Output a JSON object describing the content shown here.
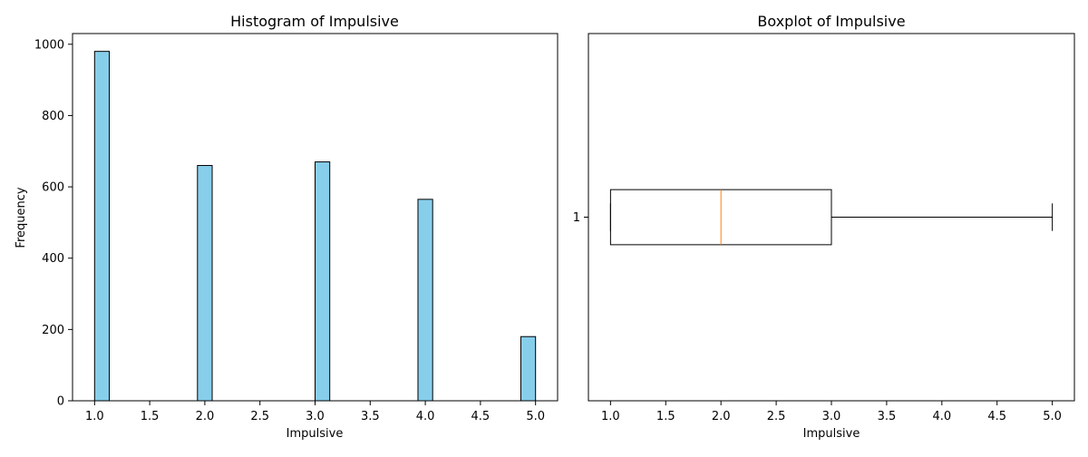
{
  "colors": {
    "bar_fill": "#87ceeb",
    "bar_edge": "#000000",
    "median_line": "#ff7f0e",
    "axes": "#000000"
  },
  "chart_data": [
    {
      "type": "bar",
      "title": "Histogram of Impulsive",
      "xlabel": "Impulsive",
      "ylabel": "Frequency",
      "xlim": [
        0.8,
        5.2
      ],
      "ylim": [
        0,
        1030
      ],
      "bin_width": 0.1333,
      "bins": [
        {
          "x_start": 1.0,
          "x_end": 1.1333,
          "count": 980
        },
        {
          "x_start": 1.9333,
          "x_end": 2.0667,
          "count": 660
        },
        {
          "x_start": 3.0,
          "x_end": 3.1333,
          "count": 670
        },
        {
          "x_start": 3.9333,
          "x_end": 4.0667,
          "count": 565
        },
        {
          "x_start": 4.8667,
          "x_end": 5.0,
          "count": 180
        }
      ],
      "x_ticks": [
        {
          "value": 1.0,
          "label": "1.0"
        },
        {
          "value": 1.5,
          "label": "1.5"
        },
        {
          "value": 2.0,
          "label": "2.0"
        },
        {
          "value": 2.5,
          "label": "2.5"
        },
        {
          "value": 3.0,
          "label": "3.0"
        },
        {
          "value": 3.5,
          "label": "3.5"
        },
        {
          "value": 4.0,
          "label": "4.0"
        },
        {
          "value": 4.5,
          "label": "4.5"
        },
        {
          "value": 5.0,
          "label": "5.0"
        }
      ],
      "y_ticks": [
        {
          "value": 0,
          "label": "0"
        },
        {
          "value": 200,
          "label": "200"
        },
        {
          "value": 400,
          "label": "400"
        },
        {
          "value": 600,
          "label": "600"
        },
        {
          "value": 800,
          "label": "800"
        },
        {
          "value": 1000,
          "label": "1000"
        }
      ],
      "grid": false
    },
    {
      "type": "boxplot",
      "title": "Boxplot of Impulsive",
      "xlabel": "Impulsive",
      "orientation": "horizontal",
      "xlim": [
        0.8,
        5.2
      ],
      "ylim": [
        0.5,
        1.5
      ],
      "box": {
        "position": 1,
        "whisker_low": 1.0,
        "q1": 1.0,
        "median": 2.0,
        "q3": 3.0,
        "whisker_high": 5.0
      },
      "x_ticks": [
        {
          "value": 1.0,
          "label": "1.0"
        },
        {
          "value": 1.5,
          "label": "1.5"
        },
        {
          "value": 2.0,
          "label": "2.0"
        },
        {
          "value": 2.5,
          "label": "2.5"
        },
        {
          "value": 3.0,
          "label": "3.0"
        },
        {
          "value": 3.5,
          "label": "3.5"
        },
        {
          "value": 4.0,
          "label": "4.0"
        },
        {
          "value": 4.5,
          "label": "4.5"
        },
        {
          "value": 5.0,
          "label": "5.0"
        }
      ],
      "y_ticks": [
        {
          "value": 1,
          "label": "1"
        }
      ],
      "grid": false
    }
  ]
}
